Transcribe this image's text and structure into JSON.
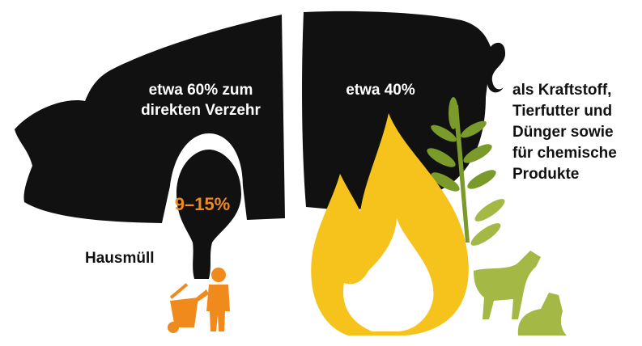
{
  "food": {
    "lines": [
      "etwa 60% zum",
      "direkten Verzehr"
    ]
  },
  "other": {
    "lines": [
      "etwa 40%"
    ]
  },
  "waste_share": "9–15%",
  "waste_label": "Hausmüll",
  "uses": {
    "lines": [
      "als Kraftstoff,",
      "Tierfutter und",
      "Dünger sowie",
      "für chemische",
      "Produkte"
    ]
  }
}
